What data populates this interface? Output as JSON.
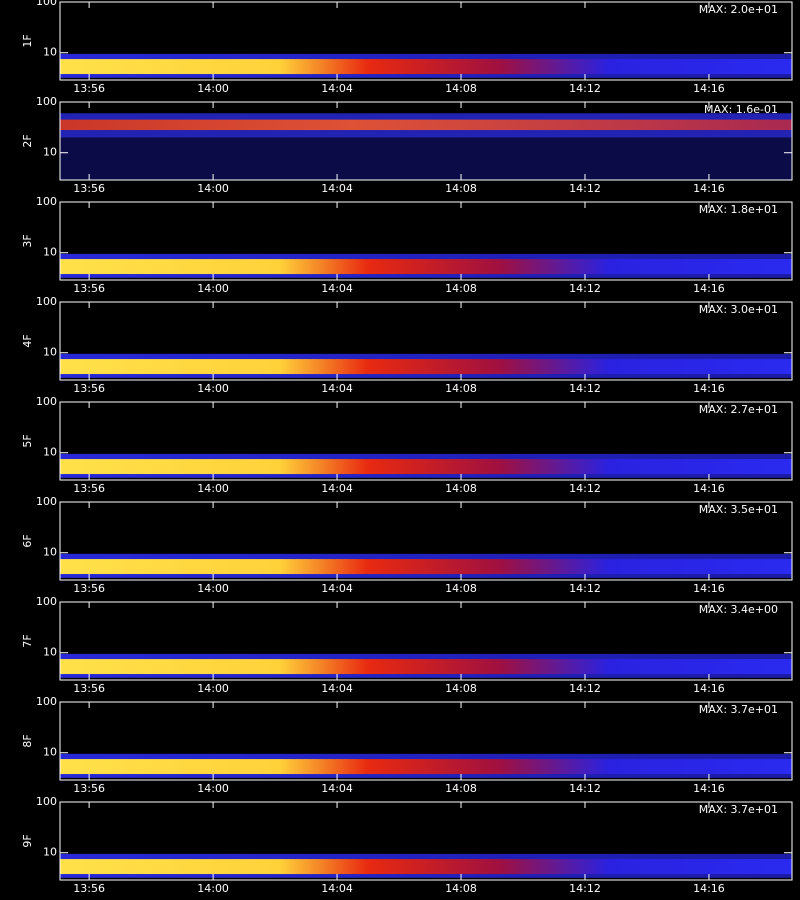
{
  "chart_data": [
    {
      "type": "heatmap",
      "ylabel": "1F",
      "annotation": "MAX: 2.0e+01",
      "log_y": true,
      "xlim": [
        835.06,
        858.68
      ],
      "xticks": [
        {
          "value": 836,
          "label": "13:56"
        },
        {
          "value": 840,
          "label": "14:00"
        },
        {
          "value": 844,
          "label": "14:04"
        },
        {
          "value": 848,
          "label": "14:08"
        },
        {
          "value": 852,
          "label": "14:12"
        },
        {
          "value": 856,
          "label": "14:16"
        }
      ],
      "ylim": [
        2.9,
        100
      ],
      "yticks": [
        10,
        100
      ]
    },
    {
      "type": "heatmap",
      "ylabel": "2F",
      "annotation": "MAX: 1.6e-01",
      "log_y": true,
      "xlim": [
        835.06,
        858.68
      ],
      "xticks": [
        {
          "value": 836,
          "label": "13:56"
        },
        {
          "value": 840,
          "label": "14:00"
        },
        {
          "value": 844,
          "label": "14:04"
        },
        {
          "value": 848,
          "label": "14:08"
        },
        {
          "value": 852,
          "label": "14:12"
        },
        {
          "value": 856,
          "label": "14:16"
        }
      ],
      "ylim": [
        2.9,
        100
      ],
      "yticks": [
        10,
        100
      ]
    },
    {
      "type": "heatmap",
      "ylabel": "3F",
      "annotation": "MAX: 1.8e+01",
      "log_y": true,
      "xlim": [
        835.06,
        858.68
      ],
      "xticks": [
        {
          "value": 836,
          "label": "13:56"
        },
        {
          "value": 840,
          "label": "14:00"
        },
        {
          "value": 844,
          "label": "14:04"
        },
        {
          "value": 848,
          "label": "14:08"
        },
        {
          "value": 852,
          "label": "14:12"
        },
        {
          "value": 856,
          "label": "14:16"
        }
      ],
      "ylim": [
        2.9,
        100
      ],
      "yticks": [
        10,
        100
      ]
    },
    {
      "type": "heatmap",
      "ylabel": "4F",
      "annotation": "MAX: 3.0e+01",
      "log_y": true,
      "xlim": [
        835.06,
        858.68
      ],
      "xticks": [
        {
          "value": 836,
          "label": "13:56"
        },
        {
          "value": 840,
          "label": "14:00"
        },
        {
          "value": 844,
          "label": "14:04"
        },
        {
          "value": 848,
          "label": "14:08"
        },
        {
          "value": 852,
          "label": "14:12"
        },
        {
          "value": 856,
          "label": "14:16"
        }
      ],
      "ylim": [
        2.9,
        100
      ],
      "yticks": [
        10,
        100
      ]
    },
    {
      "type": "heatmap",
      "ylabel": "5F",
      "annotation": "MAX: 2.7e+01",
      "log_y": true,
      "xlim": [
        835.06,
        858.68
      ],
      "xticks": [
        {
          "value": 836,
          "label": "13:56"
        },
        {
          "value": 840,
          "label": "14:00"
        },
        {
          "value": 844,
          "label": "14:04"
        },
        {
          "value": 848,
          "label": "14:08"
        },
        {
          "value": 852,
          "label": "14:12"
        },
        {
          "value": 856,
          "label": "14:16"
        }
      ],
      "ylim": [
        2.9,
        100
      ],
      "yticks": [
        10,
        100
      ]
    },
    {
      "type": "heatmap",
      "ylabel": "6F",
      "annotation": "MAX: 3.5e+01",
      "log_y": true,
      "xlim": [
        835.06,
        858.68
      ],
      "xticks": [
        {
          "value": 836,
          "label": "13:56"
        },
        {
          "value": 840,
          "label": "14:00"
        },
        {
          "value": 844,
          "label": "14:04"
        },
        {
          "value": 848,
          "label": "14:08"
        },
        {
          "value": 852,
          "label": "14:12"
        },
        {
          "value": 856,
          "label": "14:16"
        }
      ],
      "ylim": [
        2.9,
        100
      ],
      "yticks": [
        10,
        100
      ]
    },
    {
      "type": "heatmap",
      "ylabel": "7F",
      "annotation": "MAX: 3.4e+00",
      "log_y": true,
      "xlim": [
        835.06,
        858.68
      ],
      "xticks": [
        {
          "value": 836,
          "label": "13:56"
        },
        {
          "value": 840,
          "label": "14:00"
        },
        {
          "value": 844,
          "label": "14:04"
        },
        {
          "value": 848,
          "label": "14:08"
        },
        {
          "value": 852,
          "label": "14:12"
        },
        {
          "value": 856,
          "label": "14:16"
        }
      ],
      "ylim": [
        2.9,
        100
      ],
      "yticks": [
        10,
        100
      ]
    },
    {
      "type": "heatmap",
      "ylabel": "8F",
      "annotation": "MAX: 3.7e+01",
      "log_y": true,
      "xlim": [
        835.06,
        858.68
      ],
      "xticks": [
        {
          "value": 836,
          "label": "13:56"
        },
        {
          "value": 840,
          "label": "14:00"
        },
        {
          "value": 844,
          "label": "14:04"
        },
        {
          "value": 848,
          "label": "14:08"
        },
        {
          "value": 852,
          "label": "14:12"
        },
        {
          "value": 856,
          "label": "14:16"
        }
      ],
      "ylim": [
        2.9,
        100
      ],
      "yticks": [
        10,
        100
      ]
    },
    {
      "type": "heatmap",
      "ylabel": "9F",
      "annotation": "MAX: 3.7e+01",
      "log_y": true,
      "xlim": [
        835.06,
        858.68
      ],
      "xticks": [
        {
          "value": 836,
          "label": "13:56"
        },
        {
          "value": 840,
          "label": "14:00"
        },
        {
          "value": 844,
          "label": "14:04"
        },
        {
          "value": 848,
          "label": "14:08"
        },
        {
          "value": 852,
          "label": "14:12"
        },
        {
          "value": 856,
          "label": "14:16"
        }
      ],
      "ylim": [
        2.9,
        100
      ],
      "yticks": [
        10,
        100
      ]
    }
  ]
}
